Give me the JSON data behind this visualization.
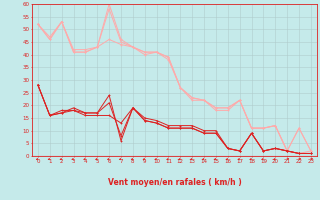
{
  "xlabel": "Vent moyen/en rafales ( km/h )",
  "xlim": [
    -0.5,
    23.5
  ],
  "ylim": [
    0,
    60
  ],
  "yticks": [
    0,
    5,
    10,
    15,
    20,
    25,
    30,
    35,
    40,
    45,
    50,
    55,
    60
  ],
  "xticks": [
    0,
    1,
    2,
    3,
    4,
    5,
    6,
    7,
    8,
    9,
    10,
    11,
    12,
    13,
    14,
    15,
    16,
    17,
    18,
    19,
    20,
    21,
    22,
    23
  ],
  "bg_color": "#c5eaea",
  "grid_color": "#b0cccc",
  "line1_x": [
    0,
    1,
    2,
    3,
    4,
    5,
    6,
    7,
    8,
    9,
    10,
    11,
    12,
    13,
    14,
    15,
    16,
    17,
    18,
    19,
    20,
    21,
    22,
    23
  ],
  "line1_y": [
    28,
    16,
    17,
    18,
    16,
    16,
    16,
    13,
    19,
    14,
    13,
    11,
    11,
    11,
    9,
    9,
    3,
    2,
    9,
    2,
    3,
    2,
    1,
    1
  ],
  "line2_x": [
    0,
    1,
    2,
    3,
    4,
    5,
    6,
    7,
    8,
    9,
    10,
    11,
    12,
    13,
    14,
    15,
    16,
    17,
    18,
    19,
    20,
    21,
    22,
    23
  ],
  "line2_y": [
    28,
    16,
    17,
    19,
    17,
    17,
    24,
    6,
    19,
    15,
    14,
    12,
    12,
    12,
    10,
    10,
    3,
    2,
    9,
    2,
    3,
    2,
    1,
    1
  ],
  "line3_x": [
    0,
    1,
    2,
    3,
    4,
    5,
    6,
    7,
    8,
    9,
    10,
    11,
    12,
    13,
    14,
    15,
    16,
    17,
    18,
    19,
    20,
    21,
    22,
    23
  ],
  "line3_y": [
    28,
    16,
    18,
    18,
    17,
    17,
    21,
    8,
    19,
    14,
    13,
    11,
    11,
    11,
    9,
    9,
    3,
    2,
    9,
    2,
    3,
    2,
    1,
    1
  ],
  "line_dark_color": "#dd2222",
  "line4_x": [
    0,
    1,
    2,
    3,
    4,
    5,
    6,
    7,
    8,
    9,
    10,
    11,
    12,
    13,
    14,
    15,
    16,
    17,
    18,
    19,
    20,
    21,
    22,
    23
  ],
  "line4_y": [
    52,
    47,
    53,
    41,
    41,
    43,
    46,
    44,
    43,
    40,
    41,
    38,
    27,
    22,
    22,
    18,
    18,
    22,
    11,
    11,
    12,
    2,
    1,
    2
  ],
  "line5_x": [
    0,
    1,
    2,
    3,
    4,
    5,
    6,
    7,
    8,
    9,
    10,
    11,
    12,
    13,
    14,
    15,
    16,
    17,
    18,
    19,
    20,
    21,
    22,
    23
  ],
  "line5_y": [
    52,
    46,
    53,
    42,
    42,
    43,
    60,
    46,
    43,
    41,
    41,
    39,
    27,
    23,
    22,
    19,
    19,
    22,
    11,
    11,
    12,
    2,
    11,
    2
  ],
  "line6_x": [
    0,
    1,
    2,
    3,
    4,
    5,
    6,
    7,
    8,
    9,
    10,
    11,
    12,
    13,
    14,
    15,
    16,
    17,
    18,
    19,
    20,
    21,
    22,
    23
  ],
  "line6_y": [
    52,
    46,
    53,
    41,
    41,
    43,
    58,
    45,
    43,
    41,
    41,
    39,
    27,
    23,
    22,
    19,
    19,
    22,
    11,
    11,
    12,
    2,
    11,
    2
  ],
  "line_light_color": "#ffaaaa",
  "arrow_color": "#dd2222",
  "arrow_angles": [
    225,
    225,
    225,
    225,
    225,
    225,
    225,
    225,
    225,
    225,
    225,
    225,
    225,
    225,
    225,
    225,
    225,
    225,
    225,
    225,
    225,
    45,
    45,
    45
  ]
}
